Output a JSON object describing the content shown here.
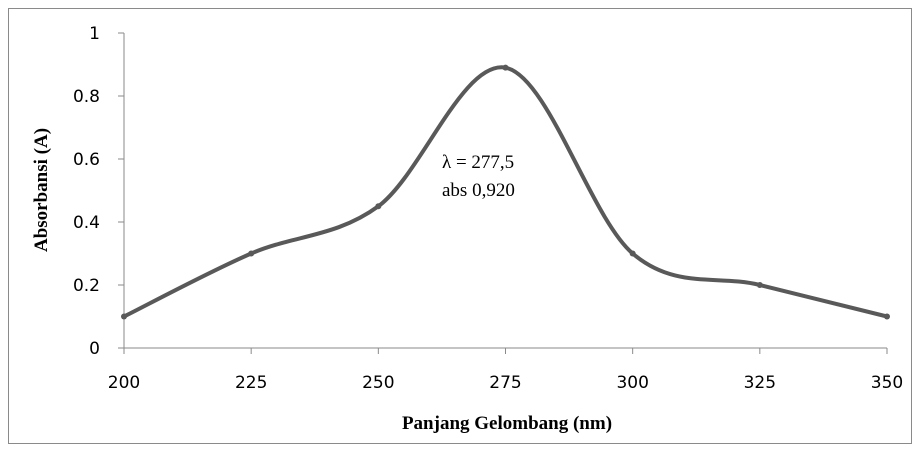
{
  "chart_data": {
    "type": "line",
    "x": [
      200,
      225,
      250,
      275,
      300,
      325,
      350
    ],
    "series": [
      {
        "values": [
          0.1,
          0.3,
          0.45,
          0.89,
          0.3,
          0.2,
          0.1
        ]
      }
    ],
    "title": "",
    "xlabel": "Panjang Gelombang (nm)",
    "ylabel": "Absorbansi (A)",
    "xlim": [
      200,
      350
    ],
    "ylim": [
      0,
      1
    ],
    "x_ticks": [
      "200",
      "225",
      "250",
      "275",
      "300",
      "325",
      "350"
    ],
    "y_ticks": [
      "0",
      "0.2",
      "0.4",
      "0.6",
      "0.8",
      "1"
    ],
    "grid": false,
    "legend": "none",
    "line_color": "#595959",
    "annotations": [
      "λ = 277,5",
      "abs 0,920"
    ]
  }
}
